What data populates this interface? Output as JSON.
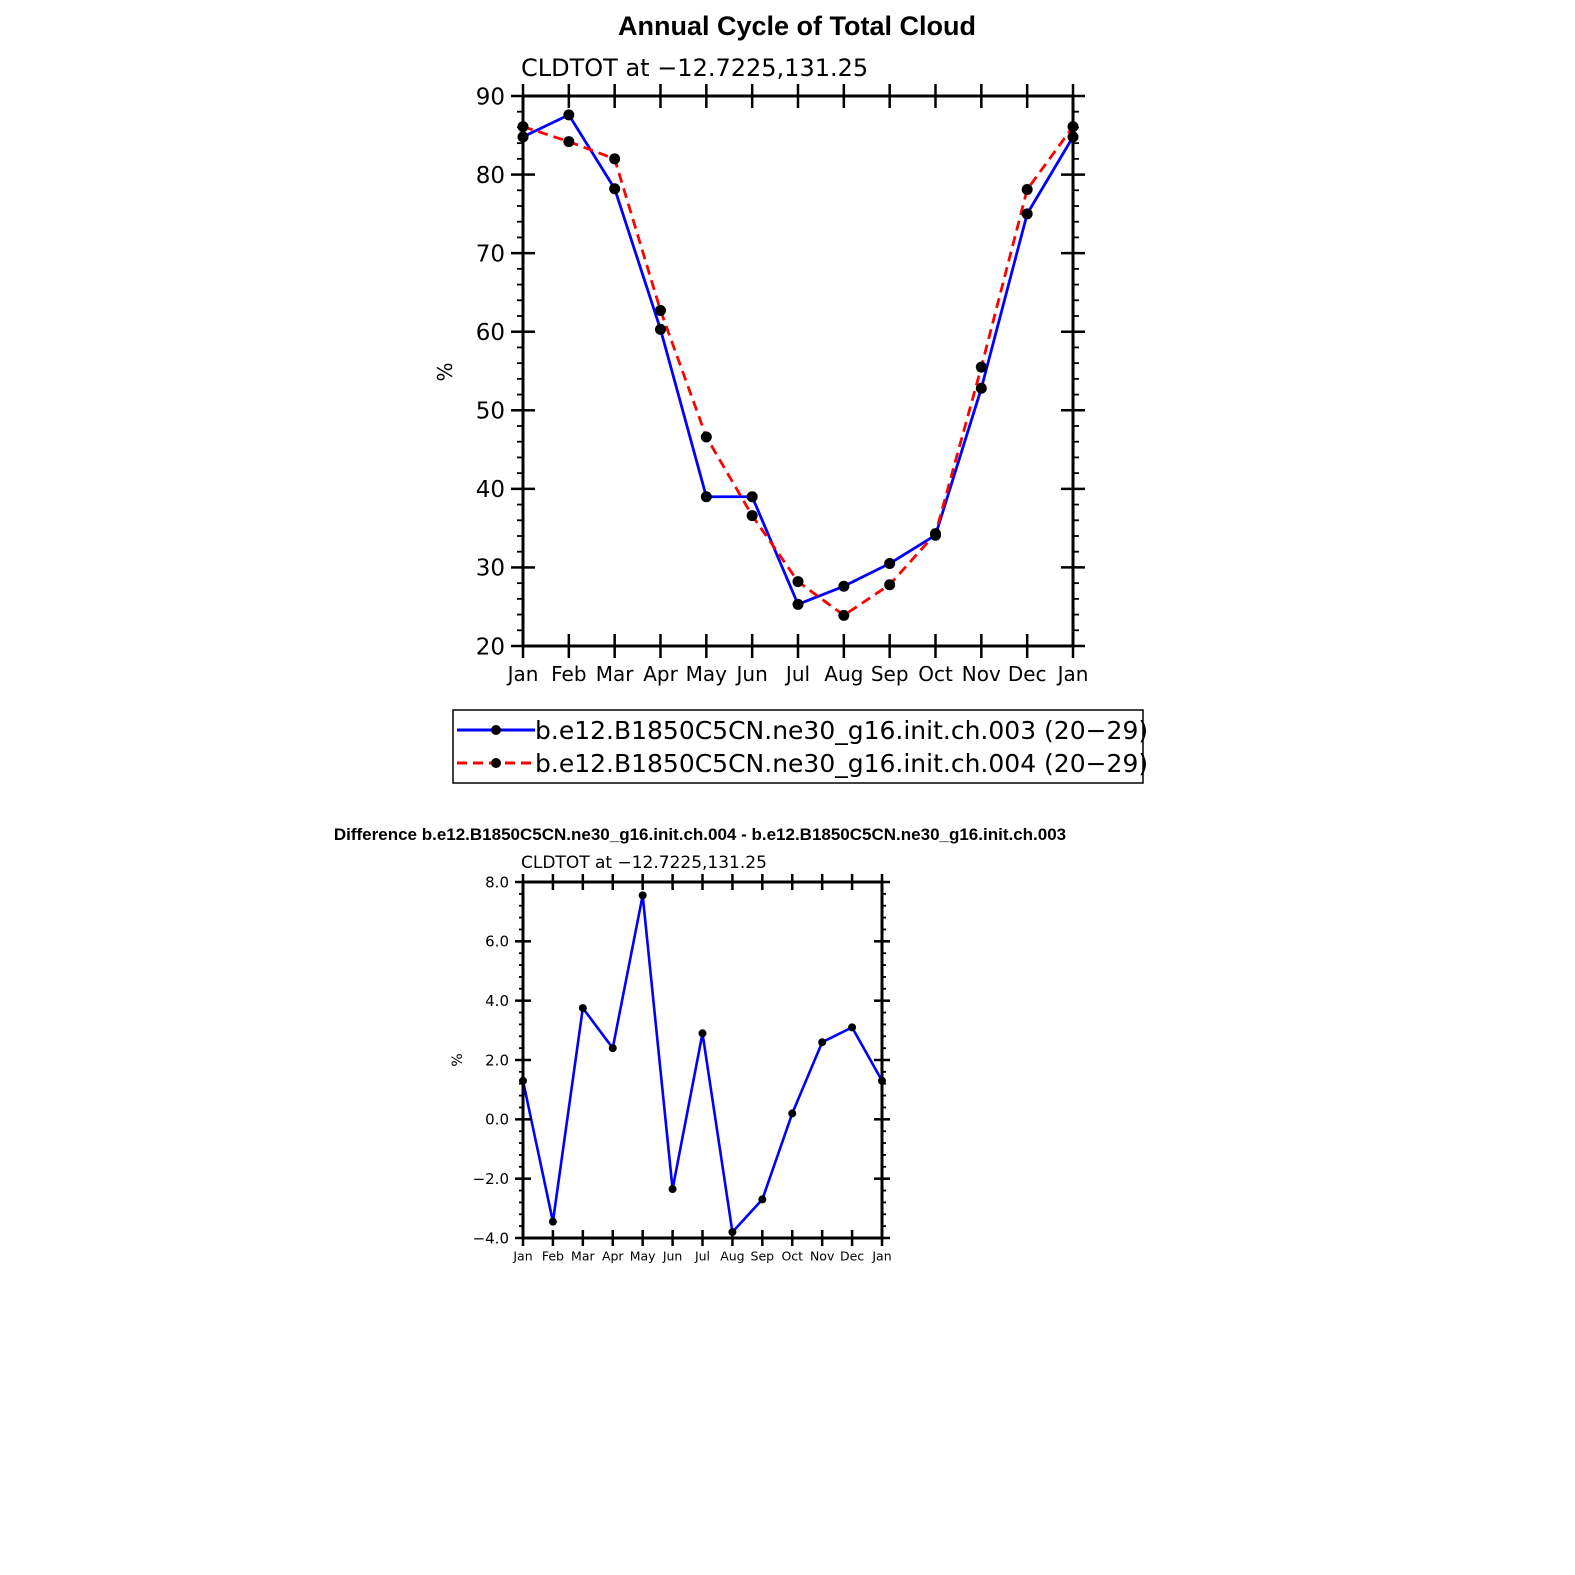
{
  "colors": {
    "series1": "#0000ff",
    "series2": "#ff0000",
    "marker": "#000000",
    "axis": "#000000"
  },
  "chart_data": [
    {
      "type": "line",
      "title": "Annual Cycle of Total Cloud",
      "subtitle": "CLDTOT at −12.7225,131.25",
      "ylabel": "%",
      "ylim": [
        20,
        90
      ],
      "yticks": [
        "20",
        "30",
        "40",
        "50",
        "60",
        "70",
        "80",
        "90"
      ],
      "categories": [
        "Jan",
        "Feb",
        "Mar",
        "Apr",
        "May",
        "Jun",
        "Jul",
        "Aug",
        "Sep",
        "Oct",
        "Nov",
        "Dec",
        "Jan"
      ],
      "series": [
        {
          "name": "b.e12.B1850C5CN.ne30_g16.init.ch.003 (20−29)",
          "color": "#0000ff",
          "style": "solid",
          "values": [
            84.8,
            87.6,
            78.2,
            60.3,
            39.0,
            39.0,
            25.3,
            27.6,
            30.5,
            34.1,
            52.8,
            75.0,
            84.8
          ]
        },
        {
          "name": "b.e12.B1850C5CN.ne30_g16.init.ch.004 (20−29)",
          "color": "#ff0000",
          "style": "dashed",
          "values": [
            86.1,
            84.2,
            82.0,
            62.7,
            46.6,
            36.6,
            28.2,
            23.9,
            27.8,
            34.3,
            55.5,
            78.1,
            86.1
          ]
        }
      ],
      "legend": "bottom"
    },
    {
      "type": "line",
      "title": "Difference b.e12.B1850C5CN.ne30_g16.init.ch.004 - b.e12.B1850C5CN.ne30_g16.init.ch.003",
      "subtitle": "CLDTOT at −12.7225,131.25",
      "ylabel": "%",
      "ylim": [
        -4.0,
        8.0
      ],
      "yticks": [
        "−4.0",
        "−2.0",
        "0.0",
        "2.0",
        "4.0",
        "6.0",
        "8.0"
      ],
      "categories": [
        "Jan",
        "Feb",
        "Mar",
        "Apr",
        "May",
        "Jun",
        "Jul",
        "Aug",
        "Sep",
        "Oct",
        "Nov",
        "Dec",
        "Jan"
      ],
      "series": [
        {
          "color": "#0000ff",
          "style": "solid",
          "values": [
            1.3,
            -3.45,
            3.75,
            2.4,
            7.55,
            -2.35,
            2.9,
            -3.8,
            -2.7,
            0.2,
            2.6,
            3.1,
            1.3
          ]
        }
      ]
    }
  ]
}
